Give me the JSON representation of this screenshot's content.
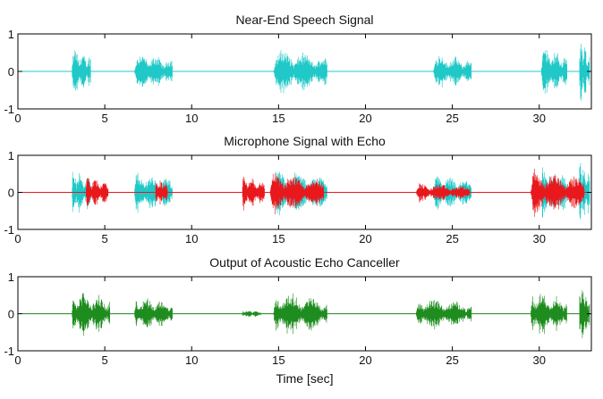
{
  "chart_data": [
    {
      "type": "line",
      "title": "Near-End Speech Signal",
      "xlabel": "",
      "ylabel": "",
      "xlim": [
        0,
        33
      ],
      "ylim": [
        -1,
        1
      ],
      "x_ticks": [
        0,
        5,
        10,
        15,
        20,
        25,
        30
      ],
      "y_ticks": [
        -1,
        0,
        1
      ],
      "grid": false,
      "series": [
        {
          "color": "#20c8c8",
          "bursts": [
            {
              "start": 3.1,
              "end": 4.2,
              "amplitude": 0.72
            },
            {
              "start": 6.7,
              "end": 8.9,
              "amplitude": 0.58
            },
            {
              "start": 14.7,
              "end": 17.8,
              "amplitude": 0.68
            },
            {
              "start": 23.9,
              "end": 26.1,
              "amplitude": 0.55
            },
            {
              "start": 30.1,
              "end": 31.6,
              "amplitude": 0.78
            },
            {
              "start": 32.3,
              "end": 32.9,
              "amplitude": 1.0
            }
          ]
        }
      ]
    },
    {
      "type": "line",
      "title": "Microphone Signal with Echo",
      "xlabel": "",
      "ylabel": "",
      "xlim": [
        0,
        33
      ],
      "ylim": [
        -1,
        1
      ],
      "x_ticks": [
        0,
        5,
        10,
        15,
        20,
        25,
        30
      ],
      "y_ticks": [
        -1,
        0,
        1
      ],
      "grid": false,
      "series": [
        {
          "color": "#20c8c8",
          "bursts": [
            {
              "start": 3.1,
              "end": 4.2,
              "amplitude": 0.72
            },
            {
              "start": 6.7,
              "end": 8.9,
              "amplitude": 0.62
            },
            {
              "start": 14.7,
              "end": 17.8,
              "amplitude": 0.72
            },
            {
              "start": 23.9,
              "end": 26.1,
              "amplitude": 0.58
            },
            {
              "start": 30.1,
              "end": 31.6,
              "amplitude": 0.78
            },
            {
              "start": 32.3,
              "end": 32.9,
              "amplitude": 1.0
            }
          ]
        },
        {
          "color": "#e8181c",
          "bursts": [
            {
              "start": 3.9,
              "end": 5.2,
              "amplitude": 0.5
            },
            {
              "start": 7.9,
              "end": 8.6,
              "amplitude": 0.45
            },
            {
              "start": 12.9,
              "end": 14.2,
              "amplitude": 0.55
            },
            {
              "start": 14.5,
              "end": 17.6,
              "amplitude": 0.65
            },
            {
              "start": 22.9,
              "end": 26.0,
              "amplitude": 0.3
            },
            {
              "start": 29.5,
              "end": 32.6,
              "amplitude": 0.7
            }
          ]
        }
      ]
    },
    {
      "type": "line",
      "title": "Output of Acoustic Echo Canceller",
      "xlabel": "Time [sec]",
      "ylabel": "",
      "xlim": [
        0,
        33
      ],
      "ylim": [
        -1,
        1
      ],
      "x_ticks": [
        0,
        5,
        10,
        15,
        20,
        25,
        30
      ],
      "y_ticks": [
        -1,
        0,
        1
      ],
      "grid": false,
      "series": [
        {
          "color": "#1e8c1e",
          "bursts": [
            {
              "start": 3.1,
              "end": 5.3,
              "amplitude": 0.72
            },
            {
              "start": 6.7,
              "end": 8.9,
              "amplitude": 0.55
            },
            {
              "start": 12.9,
              "end": 14.0,
              "amplitude": 0.12
            },
            {
              "start": 14.7,
              "end": 17.8,
              "amplitude": 0.68
            },
            {
              "start": 22.9,
              "end": 26.1,
              "amplitude": 0.5
            },
            {
              "start": 29.5,
              "end": 31.6,
              "amplitude": 0.72
            },
            {
              "start": 32.3,
              "end": 32.9,
              "amplitude": 0.95
            }
          ]
        }
      ]
    }
  ]
}
